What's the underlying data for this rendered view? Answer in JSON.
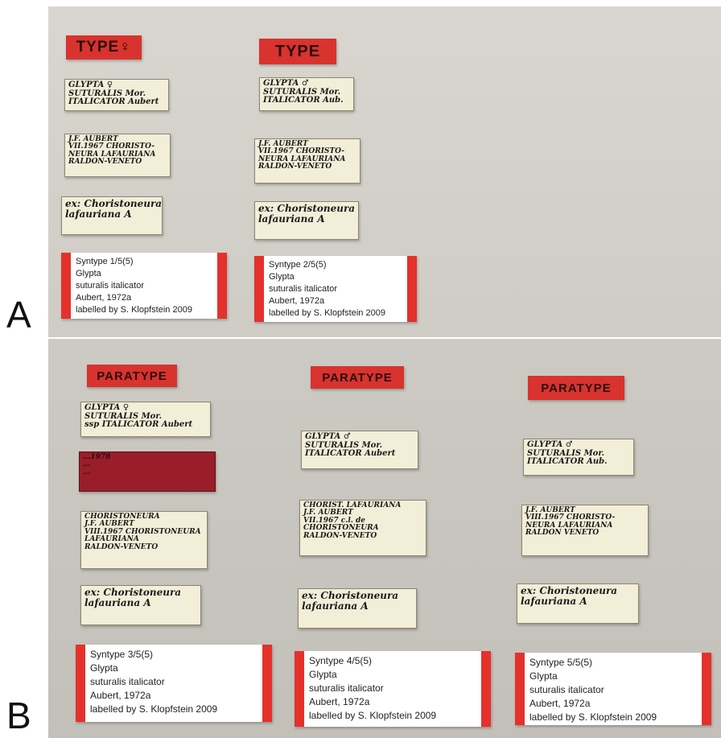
{
  "panel_letters": {
    "a": "A",
    "b": "B"
  },
  "panel_a": {
    "type_labels": [
      "TYPE♀",
      "TYPE"
    ],
    "det_labels": [
      "GLYPTA ♀\nSUTURALIS Mor.\nITALICATOR Aubert",
      "GLYPTA ♂\nSUTURALIS Mor.\nITALICATOR Aub."
    ],
    "locality_labels": [
      "J.F. AUBERT\nVII.1967 CHORISTO-\nNEURA LAFAURIANA\nRALDON-VENETO",
      "J.F. AUBERT\nVII.1967 CHORISTO-\nNEURA LAFAURIANA\nRALDON-VENETO"
    ],
    "host_labels": [
      "ex: Choristoneura\nlafauriana A",
      "ex: Choristoneura\nlafauriana A"
    ],
    "syntype_labels": [
      [
        "Syntype 1/5(5)",
        "Glypta",
        "suturalis italicator",
        "Aubert, 1972a",
        "labelled by S. Klopfstein 2009"
      ],
      [
        "Syntype 2/5(5)",
        "Glypta",
        "suturalis italicator",
        "Aubert, 1972a",
        "labelled by S. Klopfstein 2009"
      ]
    ]
  },
  "panel_b": {
    "type_labels": [
      "PARATYPE",
      "PARATYPE",
      "PARATYPE"
    ],
    "det_labels": [
      "GLYPTA ♀\nSUTURALIS Mor.\nssp ITALICATOR Aubert",
      "GLYPTA ♂\nSUTURALIS Mor.\nITALICATOR Aubert",
      "GLYPTA ♂\nSUTURALIS Mor.\nITALICATOR Aub."
    ],
    "red_note_label": "...1978\n...\n...",
    "locality_labels": [
      "CHORISTONEURA\nJ.F. AUBERT\nVIII.1967 CHORISTONEURA\nLAFAURIANA\nRALDON-VENETO",
      "CHORIST. LAFAURIANA\nJ.F. AUBERT\nVII.1967 c.l. de\nCHORISTONEURA\nRALDON-VENETO",
      "J.F. AUBERT\nVIII.1967 CHORISTO-\nNEURA LAFAURIANA\nRALDON VENETO"
    ],
    "host_labels": [
      "ex: Choristoneura\nlafauriana A",
      "ex: Choristoneura\nlafauriana A",
      "ex: Choristoneura\nlafauriana A"
    ],
    "syntype_labels": [
      [
        "Syntype 3/5(5)",
        "Glypta",
        "suturalis italicator",
        "Aubert, 1972a",
        "labelled by S. Klopfstein 2009"
      ],
      [
        "Syntype 4/5(5)",
        "Glypta",
        "suturalis italicator",
        "Aubert, 1972a",
        "labelled by S. Klopfstein 2009"
      ],
      [
        "Syntype 5/5(5)",
        "Glypta",
        "suturalis italicator",
        "Aubert, 1972a",
        "labelled by S. Klopfstein 2009"
      ]
    ]
  }
}
